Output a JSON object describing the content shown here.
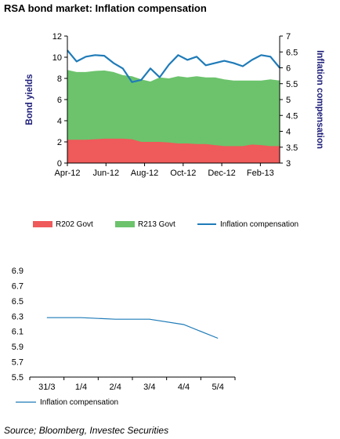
{
  "title": "RSA bond market: Inflation compensation",
  "source": "Source; Bloomberg, Investec Securities",
  "colors": {
    "r202": "#ef5a5a",
    "r213": "#6cc36c",
    "line": "#1f7bb8",
    "axis_title": "#1f1f7a"
  },
  "chart_data": [
    {
      "type": "area",
      "title": "RSA bond market: Inflation compensation",
      "ylabel": "Bond yields",
      "y2label": "Inflation compensation",
      "ylim": [
        0,
        12
      ],
      "y2lim": [
        3,
        7
      ],
      "yticks": [
        "0",
        "2",
        "4",
        "6",
        "8",
        "10",
        "12"
      ],
      "y2ticks": [
        "3",
        "3.5",
        "4",
        "4.5",
        "5",
        "5.5",
        "6",
        "6.5",
        "7"
      ],
      "xticks": [
        "Apr-12",
        "Jun-12",
        "Aug-12",
        "Oct-12",
        "Dec-12",
        "Feb-13"
      ],
      "x": [
        "Apr-12",
        "Apr-12",
        "May-12",
        "May-12",
        "Jun-12",
        "Jun-12",
        "Jul-12",
        "Jul-12",
        "Aug-12",
        "Aug-12",
        "Sep-12",
        "Sep-12",
        "Oct-12",
        "Oct-12",
        "Nov-12",
        "Nov-12",
        "Dec-12",
        "Dec-12",
        "Jan-13",
        "Jan-13",
        "Feb-13",
        "Feb-13",
        "Mar-13",
        "Mar-13"
      ],
      "series": [
        {
          "name": "R202 Govt",
          "kind": "area",
          "axis": "left",
          "values": [
            2.2,
            2.2,
            2.2,
            2.25,
            2.3,
            2.3,
            2.3,
            2.25,
            2.0,
            2.0,
            2.0,
            1.95,
            1.85,
            1.85,
            1.8,
            1.8,
            1.7,
            1.6,
            1.6,
            1.6,
            1.75,
            1.7,
            1.6,
            1.6
          ]
        },
        {
          "name": "R213 Govt",
          "kind": "area",
          "axis": "left",
          "values": [
            8.8,
            8.6,
            8.6,
            8.7,
            8.75,
            8.6,
            8.3,
            8.2,
            7.9,
            7.7,
            8.1,
            8.0,
            8.2,
            8.1,
            8.2,
            8.1,
            8.1,
            7.9,
            7.8,
            7.8,
            7.8,
            7.8,
            7.9,
            7.8
          ]
        },
        {
          "name": "Inflation compensation",
          "kind": "line",
          "axis": "right",
          "values": [
            6.55,
            6.2,
            6.35,
            6.4,
            6.38,
            6.15,
            5.98,
            5.55,
            5.62,
            5.98,
            5.7,
            6.1,
            6.4,
            6.25,
            6.35,
            6.08,
            6.15,
            6.22,
            6.15,
            6.05,
            6.25,
            6.4,
            6.35,
            6.0
          ]
        }
      ],
      "legend": [
        "R202 Govt",
        "R213 Govt",
        "Inflation compensation"
      ],
      "legend_position": "bottom"
    },
    {
      "type": "line",
      "categories": [
        "31/3",
        "1/4",
        "2/4",
        "3/4",
        "4/4",
        "5/4"
      ],
      "ylim": [
        5.5,
        6.9
      ],
      "yticks": [
        "5.5",
        "5.7",
        "5.9",
        "6.1",
        "6.3",
        "6.5",
        "6.7",
        "6.9"
      ],
      "series": [
        {
          "name": "Inflation compensation",
          "values": [
            6.28,
            6.28,
            6.26,
            6.26,
            6.19,
            6.01
          ]
        }
      ],
      "legend": [
        "Inflation compensation"
      ],
      "legend_position": "bottom-left"
    }
  ]
}
